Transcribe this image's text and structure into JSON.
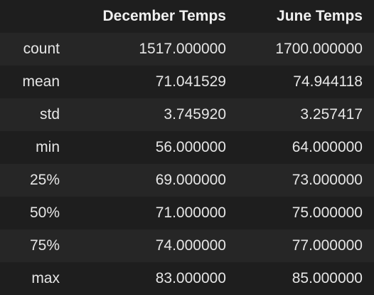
{
  "table": {
    "columns": [
      "December Temps",
      "June Temps"
    ],
    "rows": [
      {
        "label": "count",
        "values": [
          "1517.000000",
          "1700.000000"
        ]
      },
      {
        "label": "mean",
        "values": [
          "71.041529",
          "74.944118"
        ]
      },
      {
        "label": "std",
        "values": [
          "3.745920",
          "3.257417"
        ]
      },
      {
        "label": "min",
        "values": [
          "56.000000",
          "64.000000"
        ]
      },
      {
        "label": "25%",
        "values": [
          "69.000000",
          "73.000000"
        ]
      },
      {
        "label": "50%",
        "values": [
          "71.000000",
          "75.000000"
        ]
      },
      {
        "label": "75%",
        "values": [
          "74.000000",
          "77.000000"
        ]
      },
      {
        "label": "max",
        "values": [
          "83.000000",
          "85.000000"
        ]
      }
    ]
  },
  "colors": {
    "background": "#1e1e1e",
    "row_stripe": "#262626",
    "text": "#e6e6e6"
  }
}
